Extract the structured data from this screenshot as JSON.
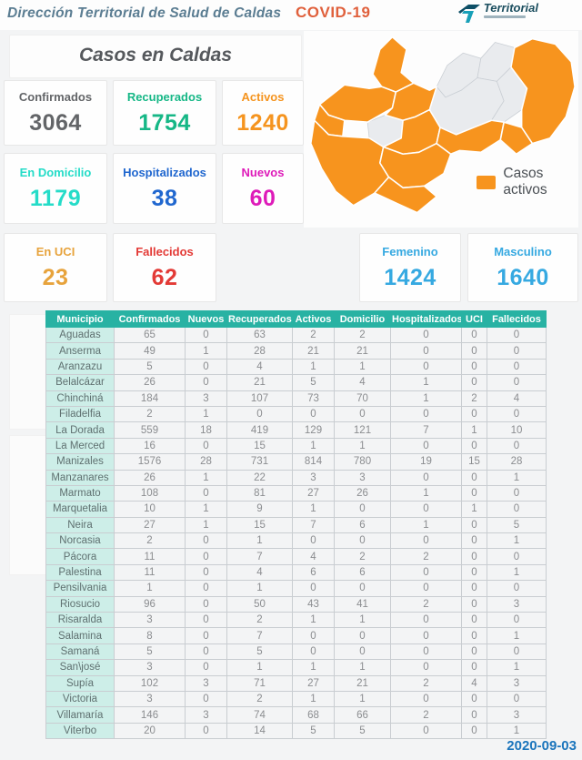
{
  "header": {
    "title": "Dirección Territorial de Salud de Caldas",
    "covid_label": "COVID-19",
    "logo_text": "Territorial"
  },
  "subtitle": "Casos en Caldas",
  "footer_date": "2020-09-03",
  "chart_data": {
    "type": "table",
    "title": "Casos en Caldas",
    "summary_cards": [
      {
        "label": "Confirmados",
        "value": 3064,
        "color": "#636568"
      },
      {
        "label": "Recuperados",
        "value": 1754,
        "color": "#16b786"
      },
      {
        "label": "Activos",
        "value": 1240,
        "color": "#f5941f"
      },
      {
        "label": "En Domicilio",
        "value": 1179,
        "color": "#25dcc8"
      },
      {
        "label": "Hospitalizados",
        "value": 38,
        "color": "#2067cf"
      },
      {
        "label": "Nuevos",
        "value": 60,
        "color": "#de1bb9"
      },
      {
        "label": "En UCI",
        "value": 23,
        "color": "#e7a33c"
      },
      {
        "label": "Fallecidos",
        "value": 62,
        "color": "#e33a36"
      }
    ],
    "gender_cards": [
      {
        "label": "Femenino",
        "value": 1424,
        "color": "#36a9e1"
      },
      {
        "label": "Masculino",
        "value": 1640,
        "color": "#36a9e1"
      }
    ],
    "map": {
      "type": "choropleth",
      "legend": "Casos activos",
      "active_color": "#f7941e",
      "inactive_color": "#e9ebee"
    },
    "columns": [
      "Municipio",
      "Confirmados",
      "Nuevos",
      "Recuperados",
      "Activos",
      "Domicilio",
      "Hospitalizados",
      "UCI",
      "Fallecidos"
    ],
    "rows": [
      [
        "Aguadas",
        65,
        0,
        63,
        2,
        2,
        0,
        0,
        0
      ],
      [
        "Anserma",
        49,
        1,
        28,
        21,
        21,
        0,
        0,
        0
      ],
      [
        "Aranzazu",
        5,
        0,
        4,
        1,
        1,
        0,
        0,
        0
      ],
      [
        "Belalcázar",
        26,
        0,
        21,
        5,
        4,
        1,
        0,
        0
      ],
      [
        "Chinchiná",
        184,
        3,
        107,
        73,
        70,
        1,
        2,
        4
      ],
      [
        "Filadelfia",
        2,
        1,
        0,
        0,
        0,
        0,
        0,
        0
      ],
      [
        "La Dorada",
        559,
        18,
        419,
        129,
        121,
        7,
        1,
        10
      ],
      [
        "La Merced",
        16,
        0,
        15,
        1,
        1,
        0,
        0,
        0
      ],
      [
        "Manizales",
        1576,
        28,
        731,
        814,
        780,
        19,
        15,
        28
      ],
      [
        "Manzanares",
        26,
        1,
        22,
        3,
        3,
        0,
        0,
        1
      ],
      [
        "Marmato",
        108,
        0,
        81,
        27,
        26,
        1,
        0,
        0
      ],
      [
        "Marquetalia",
        10,
        1,
        9,
        1,
        0,
        0,
        1,
        0
      ],
      [
        "Neira",
        27,
        1,
        15,
        7,
        6,
        1,
        0,
        5
      ],
      [
        "Norcasia",
        2,
        0,
        1,
        0,
        0,
        0,
        0,
        1
      ],
      [
        "Pácora",
        11,
        0,
        7,
        4,
        2,
        2,
        0,
        0
      ],
      [
        "Palestina",
        11,
        0,
        4,
        6,
        6,
        0,
        0,
        1
      ],
      [
        "Pensilvania",
        1,
        0,
        1,
        0,
        0,
        0,
        0,
        0
      ],
      [
        "Riosucio",
        96,
        0,
        50,
        43,
        41,
        2,
        0,
        3
      ],
      [
        "Risaralda",
        3,
        0,
        2,
        1,
        1,
        0,
        0,
        0
      ],
      [
        "Salamina",
        8,
        0,
        7,
        0,
        0,
        0,
        0,
        1
      ],
      [
        "Samaná",
        5,
        0,
        5,
        0,
        0,
        0,
        0,
        0
      ],
      [
        "San\\josé",
        3,
        0,
        1,
        1,
        1,
        0,
        0,
        1
      ],
      [
        "Supía",
        102,
        3,
        71,
        27,
        21,
        2,
        4,
        3
      ],
      [
        "Victoria",
        3,
        0,
        2,
        1,
        1,
        0,
        0,
        0
      ],
      [
        "Villamaría",
        146,
        3,
        74,
        68,
        66,
        2,
        0,
        3
      ],
      [
        "Viterbo",
        20,
        0,
        14,
        5,
        5,
        0,
        0,
        1
      ]
    ]
  }
}
